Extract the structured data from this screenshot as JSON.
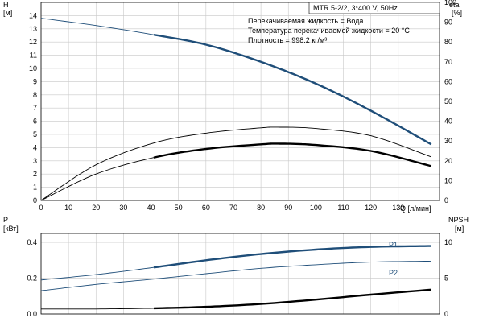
{
  "chart_data": [
    {
      "type": "line",
      "panel": "head-efficiency",
      "title": "MTR 5-2/2, 3*400 V, 50Hz",
      "notes": [
        "Перекачиваемая жидкость = Вода",
        "Температура перекачиваемой жидкости = 20 °C",
        "Плотность = 998.2 кг/м³"
      ],
      "xlabel": "Q [л/мин]",
      "xlim": [
        0,
        145
      ],
      "xticks": [
        0,
        10,
        20,
        30,
        40,
        50,
        60,
        70,
        80,
        90,
        100,
        110,
        120,
        130
      ],
      "ylabel_left": "H",
      "ylabel_left_unit": "[м]",
      "ylim_left": [
        0,
        15
      ],
      "yticks_left": [
        0,
        1,
        2,
        3,
        4,
        5,
        6,
        7,
        8,
        9,
        10,
        11,
        12,
        13,
        14
      ],
      "ylabel_right": "eta",
      "ylabel_right_unit": "[%]",
      "ylim_right": [
        0,
        100
      ],
      "yticks_right": [
        0,
        10,
        20,
        30,
        40,
        50,
        60,
        70,
        80,
        90,
        100
      ],
      "grid": true,
      "series": [
        {
          "axis": "left",
          "color": "#1f4e79",
          "thin_until": 41,
          "x": [
            0,
            20,
            41,
            60,
            80,
            100,
            120,
            142
          ],
          "y": [
            13.8,
            13.25,
            12.55,
            11.8,
            10.5,
            8.85,
            6.8,
            4.25
          ]
        },
        {
          "axis": "left",
          "color": "#000000",
          "thin_until": 142,
          "x": [
            0,
            20,
            41,
            60,
            80,
            87,
            100,
            120,
            142
          ],
          "y": [
            0,
            2.7,
            4.35,
            5.1,
            5.5,
            5.55,
            5.45,
            4.9,
            3.3
          ]
        },
        {
          "axis": "left",
          "color": "#000000",
          "thin_until": 41,
          "x": [
            0,
            20,
            41,
            60,
            80,
            87,
            100,
            120,
            142
          ],
          "y": [
            0,
            2.0,
            3.25,
            3.9,
            4.25,
            4.3,
            4.2,
            3.75,
            2.6
          ]
        }
      ]
    },
    {
      "type": "line",
      "panel": "power-npsh",
      "xlim": [
        0,
        145
      ],
      "ylabel_left": "P",
      "ylabel_left_unit": "[кВт]",
      "ylim_left": [
        0,
        0.45
      ],
      "yticks_left": [
        "0.0",
        "0.2",
        "0.4"
      ],
      "ylabel_right": "NPSH",
      "ylabel_right_unit": "[м]",
      "ylim_right": [
        0,
        11.25
      ],
      "yticks_right": [
        0,
        5,
        10
      ],
      "grid": true,
      "series": [
        {
          "name": "P1",
          "axis": "left",
          "color": "#1f4e79",
          "thin_until": 41,
          "x": [
            0,
            20,
            41,
            60,
            80,
            100,
            120,
            142
          ],
          "y": [
            0.19,
            0.22,
            0.26,
            0.3,
            0.335,
            0.36,
            0.375,
            0.38
          ]
        },
        {
          "name": "P2",
          "axis": "left",
          "color": "#1f4e79",
          "thin_until": 142,
          "x": [
            0,
            20,
            41,
            60,
            80,
            100,
            120,
            142
          ],
          "y": [
            0.13,
            0.165,
            0.195,
            0.225,
            0.255,
            0.275,
            0.29,
            0.295
          ]
        },
        {
          "axis": "right",
          "color": "#000000",
          "thin_until": 41,
          "x": [
            0,
            20,
            41,
            60,
            80,
            100,
            120,
            142
          ],
          "y": [
            0.7,
            0.7,
            0.8,
            1.0,
            1.4,
            2.0,
            2.7,
            3.4
          ]
        }
      ]
    }
  ]
}
